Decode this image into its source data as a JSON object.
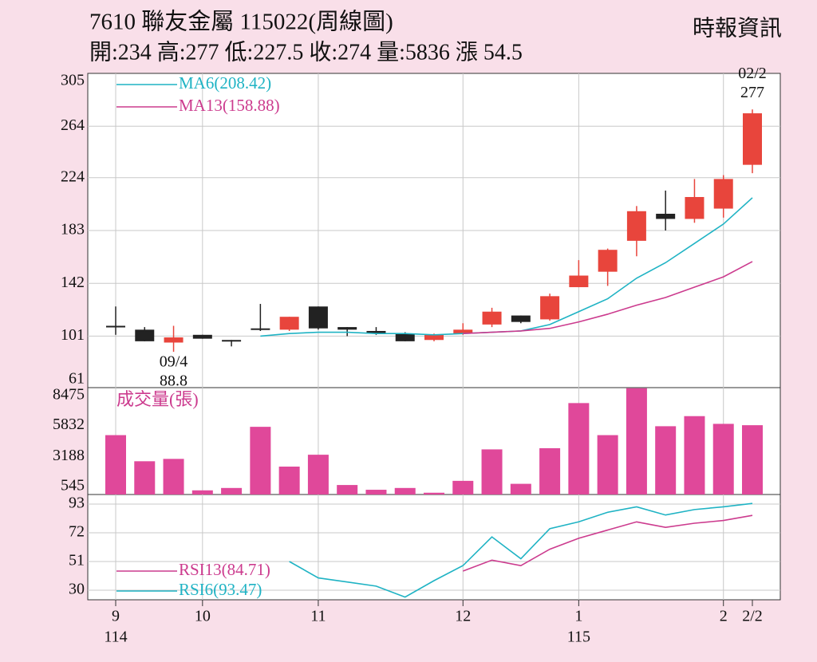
{
  "chart_data": [
    {
      "type": "candlestick",
      "title": "7610  聯友金屬 115022(周線圖)",
      "subtitle": "開:234 高:277 低:227.5 收:274 量:5836 漲 54.5",
      "source": "時報資訊",
      "categories": [
        "9",
        null,
        null,
        "10",
        null,
        null,
        null,
        "11",
        null,
        null,
        null,
        null,
        "12",
        null,
        null,
        null,
        "1",
        null,
        null,
        null,
        null,
        "2",
        "2/2"
      ],
      "year_labels": [
        "114",
        null,
        null,
        null,
        null,
        null,
        null,
        null,
        null,
        null,
        null,
        null,
        null,
        null,
        null,
        null,
        "115",
        null,
        null,
        null,
        null,
        null,
        null
      ],
      "open": [
        109,
        106,
        96,
        102,
        98,
        107,
        106,
        124,
        108,
        105,
        103,
        98,
        103,
        110,
        117,
        114,
        139,
        151,
        175,
        196,
        192,
        200,
        234
      ],
      "high": [
        124,
        108,
        109,
        102,
        98,
        126,
        116,
        124,
        108,
        108,
        104,
        103,
        111,
        123,
        117,
        134,
        160,
        169,
        202,
        214,
        223,
        226,
        277
      ],
      "low": [
        102,
        97,
        88.8,
        99,
        93,
        105,
        105,
        106,
        101,
        102,
        97,
        97,
        102,
        108,
        111,
        113,
        139,
        140,
        163,
        183,
        189,
        193,
        227.5
      ],
      "close": [
        108,
        97,
        100,
        99,
        97,
        106,
        116,
        107,
        106,
        103,
        97,
        102,
        106,
        120,
        112,
        132,
        148,
        168,
        198,
        192,
        209,
        223,
        274
      ],
      "up_color": "#e8453c",
      "down_color": "#222222",
      "series": [
        {
          "name": "MA6(208.42)",
          "color": "#1fb3c4",
          "values": [
            null,
            null,
            null,
            null,
            null,
            101,
            103,
            104,
            104,
            103,
            103,
            102,
            103,
            104,
            105,
            110,
            120,
            130,
            146,
            158,
            173,
            188,
            208.42
          ]
        },
        {
          "name": "MA13(158.88)",
          "color": "#cc3b8e",
          "values": [
            null,
            null,
            null,
            null,
            null,
            null,
            null,
            null,
            null,
            null,
            null,
            null,
            103,
            104,
            105,
            107,
            112,
            118,
            125,
            131,
            139,
            147,
            158.88
          ]
        }
      ],
      "annotations": [
        {
          "date": "02/2",
          "value": 277
        },
        {
          "date": "09/4",
          "value": 88.8
        }
      ],
      "ylim": [
        61,
        305
      ],
      "yticks": [
        61,
        101,
        142,
        183,
        224,
        264,
        305
      ],
      "grid": true
    },
    {
      "type": "bar",
      "title": "成交量(張)",
      "color": "#e0489a",
      "values": [
        5000,
        2800,
        3000,
        350,
        550,
        5700,
        2350,
        3350,
        800,
        400,
        550,
        150,
        1150,
        3800,
        900,
        3900,
        7700,
        5000,
        8950,
        5750,
        6600,
        5950,
        5836
      ],
      "ylim": [
        0,
        9000
      ],
      "yticks": [
        545,
        3188,
        5832,
        8475
      ]
    },
    {
      "type": "line",
      "series": [
        {
          "name": "RSI13(84.71)",
          "color": "#cc3b8e",
          "values": [
            null,
            null,
            null,
            null,
            null,
            null,
            null,
            null,
            null,
            null,
            null,
            null,
            44,
            52,
            48,
            60,
            68,
            74,
            80,
            76,
            79,
            81,
            84.71
          ]
        },
        {
          "name": "RSI6(93.47)",
          "color": "#1fb3c4",
          "values": [
            null,
            null,
            null,
            null,
            null,
            null,
            51,
            39,
            36,
            33,
            25,
            37,
            48,
            69,
            53,
            75,
            80,
            87,
            91,
            85,
            89,
            91,
            93.47
          ]
        }
      ],
      "ylim": [
        23,
        100
      ],
      "yticks": [
        30,
        51,
        72,
        93
      ],
      "grid": true
    }
  ]
}
